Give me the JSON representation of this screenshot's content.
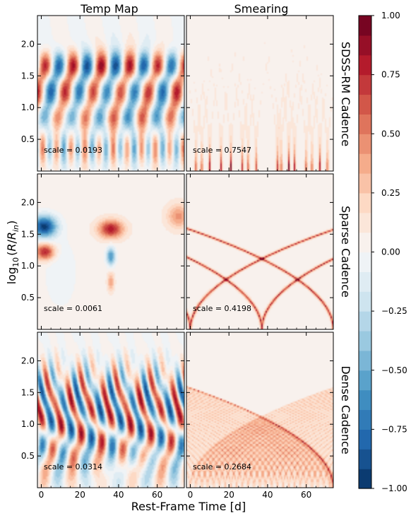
{
  "chart_data": {
    "type": "heatmap",
    "column_titles": [
      "Temp Map",
      "Smearing"
    ],
    "row_titles": [
      "SDSS-RM Cadence",
      "Sparse Cadence",
      "Dense Cadence"
    ],
    "xlabel": "Rest-Frame Time [d]",
    "ylabel_parts": {
      "prefix": "log",
      "sub1": "10",
      "open": "(",
      "R": "R",
      "slash": "/",
      "R2": "R",
      "sub2": "in",
      "close": ")"
    },
    "xlim": [
      -2,
      74
    ],
    "ylim": [
      0,
      2.45
    ],
    "xticks": [
      0,
      20,
      40,
      60
    ],
    "yticks": [
      0.5,
      1.0,
      1.5,
      2.0
    ],
    "ytick_labels": [
      "0.5",
      "1.0",
      "1.5",
      "2.0"
    ],
    "colorbar": {
      "vmin": -1.0,
      "vmax": 1.0,
      "ticks": [
        -1.0,
        -0.75,
        -0.5,
        -0.25,
        0.0,
        0.25,
        0.5,
        0.75,
        1.0
      ],
      "tick_labels": [
        "−1.00",
        "−0.75",
        "−0.50",
        "−0.25",
        "0.00",
        "0.25",
        "0.50",
        "0.75",
        "1.00"
      ],
      "colormap": "RdBu_r",
      "levels": 24
    },
    "panels": [
      {
        "row": 0,
        "col": 0,
        "scale_label": "scale = 0.0193",
        "scale": 0.0193
      },
      {
        "row": 0,
        "col": 1,
        "scale_label": "scale = 0.7547",
        "scale": 0.7547
      },
      {
        "row": 1,
        "col": 0,
        "scale_label": "scale = 0.0061",
        "scale": 0.0061
      },
      {
        "row": 1,
        "col": 1,
        "scale_label": "scale = 0.4198",
        "scale": 0.4198
      },
      {
        "row": 2,
        "col": 0,
        "scale_label": "scale = 0.0314",
        "scale": 0.0314
      },
      {
        "row": 2,
        "col": 1,
        "scale_label": "scale = 0.2684",
        "scale": 0.2684
      }
    ],
    "sdss_smear_times": [
      3,
      6,
      10,
      16,
      21,
      27,
      30,
      34,
      45,
      47,
      51,
      54,
      60,
      63,
      67,
      71
    ],
    "sparse_smear_times": [
      0,
      37,
      74
    ],
    "dense_smear_times": [
      0,
      3,
      6,
      9,
      12,
      15,
      18,
      21,
      24,
      27,
      30,
      33,
      36,
      39,
      42,
      45,
      48,
      51,
      54,
      57,
      60,
      63,
      66,
      69,
      72
    ]
  },
  "colors": {
    "red_end": "#67001f",
    "blue_end": "#053061",
    "mid": "#f7f7f7"
  }
}
